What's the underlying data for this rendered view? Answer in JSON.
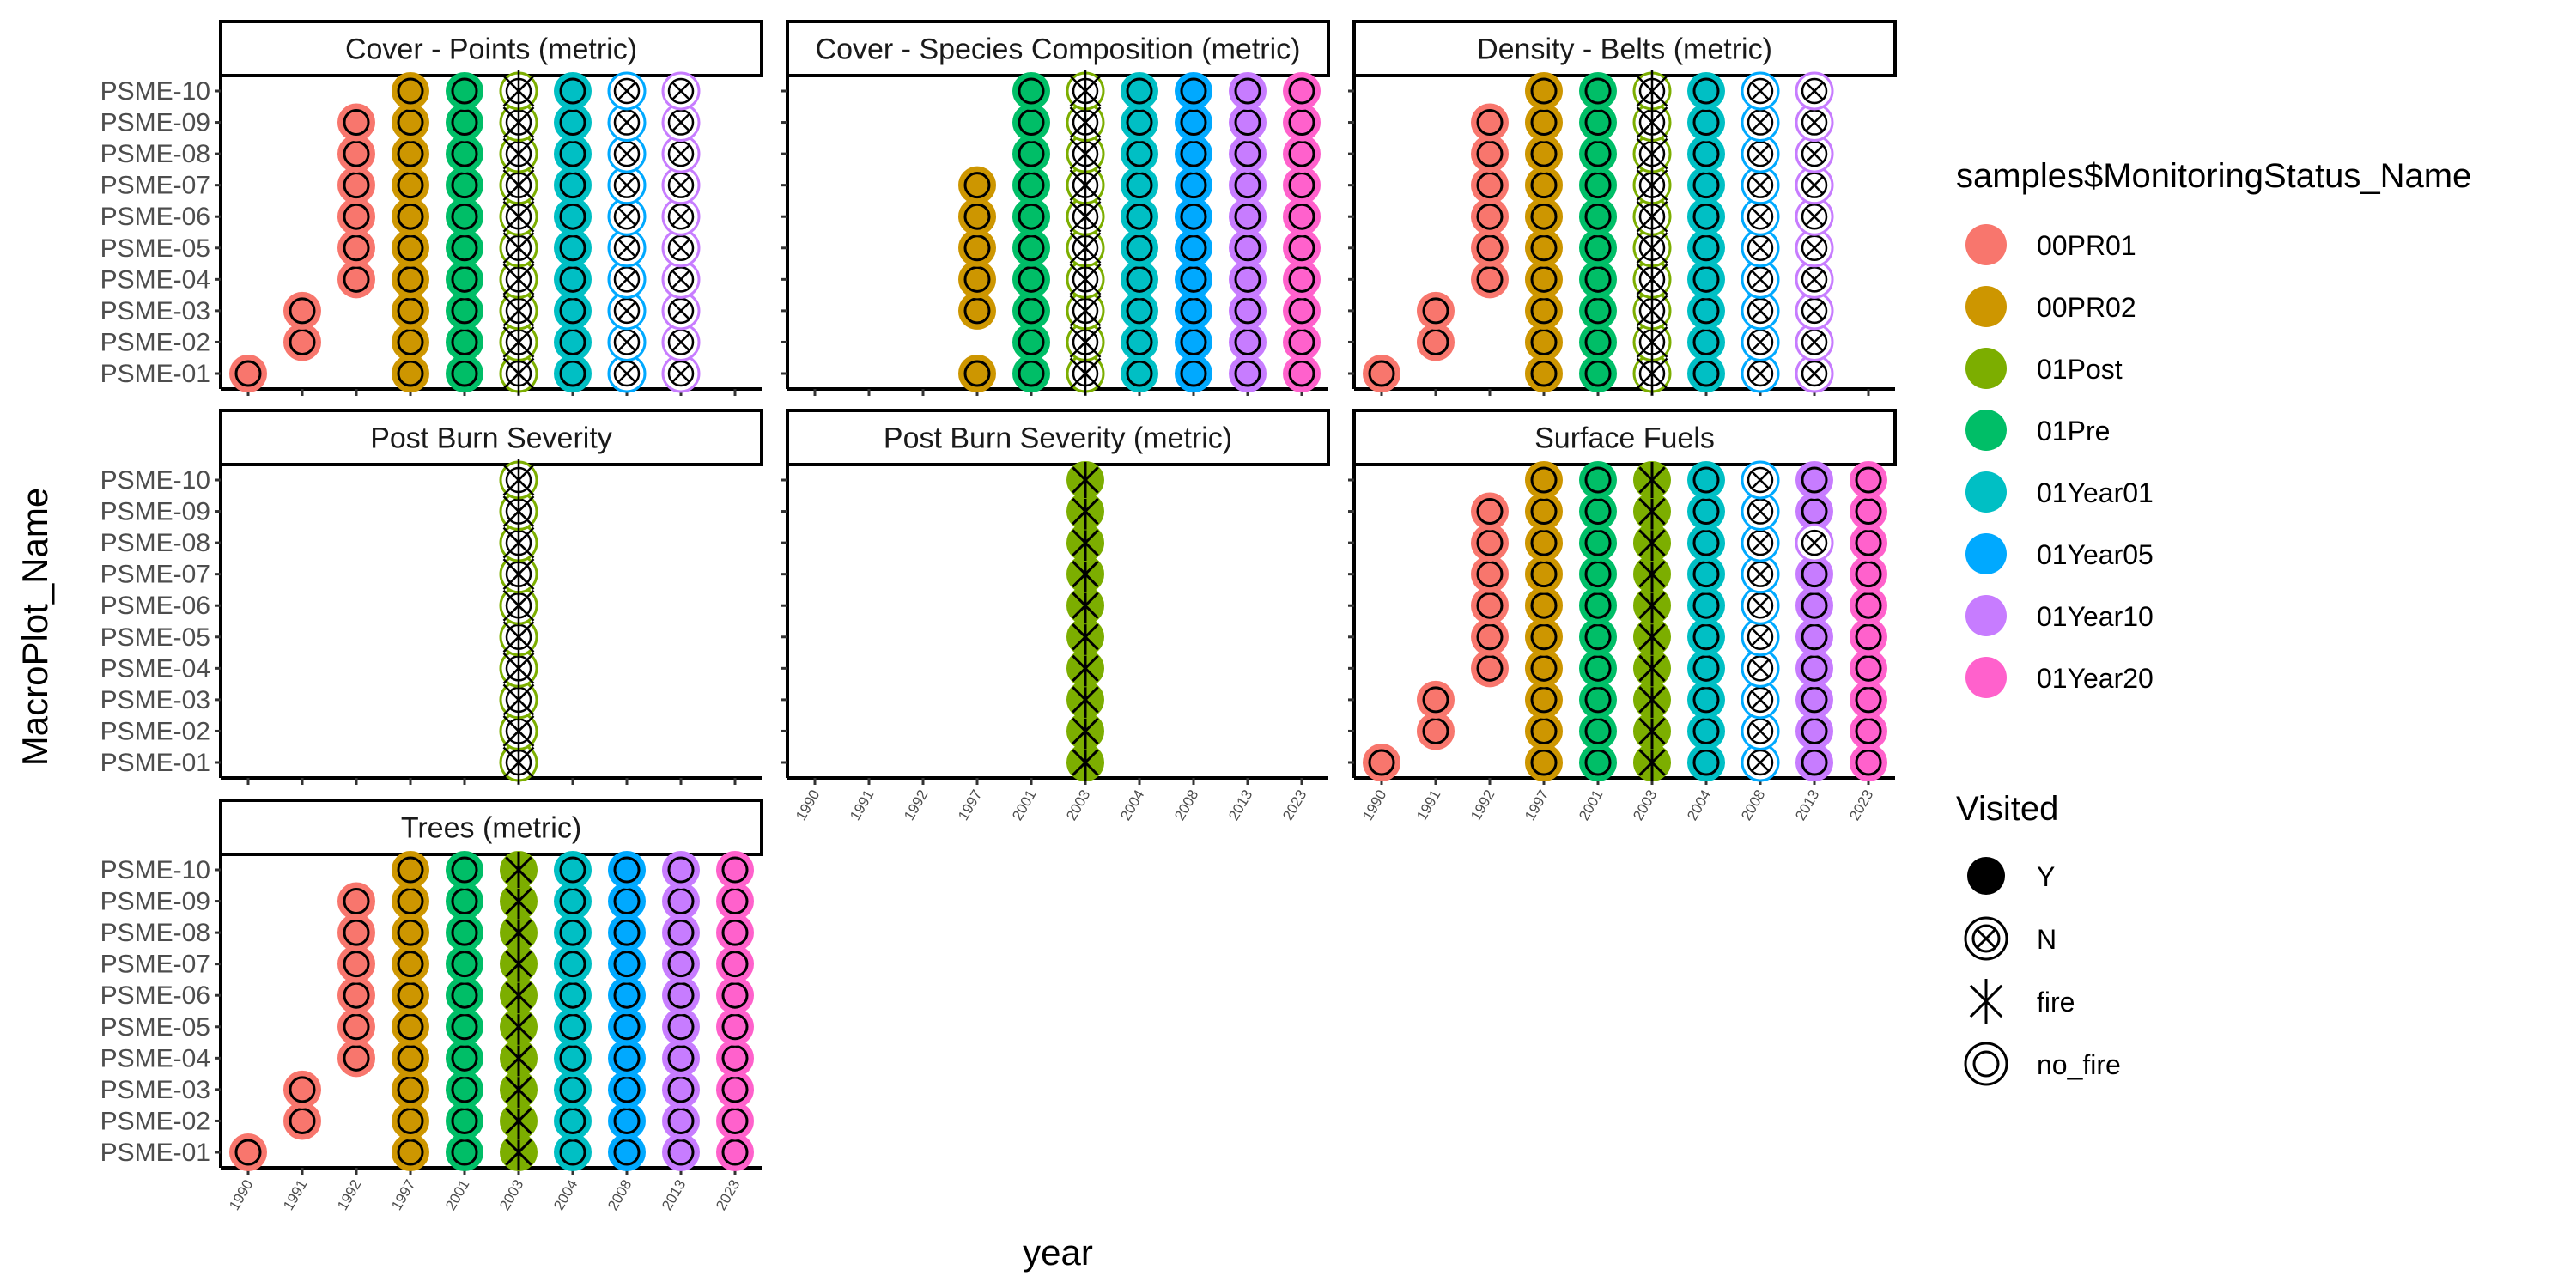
{
  "chart_data": {
    "type": "scatter",
    "xlabel": "year",
    "ylabel": "MacroPlot_Name",
    "x_categories": [
      "1990",
      "1991",
      "1992",
      "1997",
      "2001",
      "2003",
      "2004",
      "2008",
      "2013",
      "2023"
    ],
    "y_categories": [
      "PSME-01",
      "PSME-02",
      "PSME-03",
      "PSME-04",
      "PSME-05",
      "PSME-06",
      "PSME-07",
      "PSME-08",
      "PSME-09",
      "PSME-10"
    ],
    "status_colors": {
      "00PR01": "#F8766D",
      "00PR02": "#CD9600",
      "01Post": "#7CAE00",
      "01Pre": "#00BE67",
      "01Year01": "#00BFC4",
      "01Year05": "#00A9FF",
      "01Year10": "#C77CFF",
      "01Year20": "#FF61CC"
    },
    "color_legend": {
      "title": "samples$MonitoringStatus_Name",
      "entries": [
        "00PR01",
        "00PR02",
        "01Post",
        "01Pre",
        "01Year01",
        "01Year05",
        "01Year10",
        "01Year20"
      ]
    },
    "shape_legend": {
      "title": "Visited",
      "entries": [
        {
          "label": "Y",
          "shape": "filled-circle"
        },
        {
          "label": "N",
          "shape": "circle-x"
        },
        {
          "label": "fire",
          "shape": "asterisk"
        },
        {
          "label": "no_fire",
          "shape": "double-circle"
        }
      ]
    },
    "facets": [
      {
        "title": "Cover - Points (metric)",
        "columns": [
          {
            "year": "1990",
            "status": "00PR01",
            "visited": "no_fire",
            "plots": [
              1
            ]
          },
          {
            "year": "1991",
            "status": "00PR01",
            "visited": "no_fire",
            "plots": [
              2,
              3
            ]
          },
          {
            "year": "1992",
            "status": "00PR01",
            "visited": "no_fire",
            "plots": [
              4,
              5,
              6,
              7,
              8,
              9
            ]
          },
          {
            "year": "1997",
            "status": "00PR02",
            "visited": "no_fire",
            "plots": [
              1,
              2,
              3,
              4,
              5,
              6,
              7,
              8,
              9,
              10
            ]
          },
          {
            "year": "2001",
            "status": "01Pre",
            "visited": "no_fire",
            "plots": [
              1,
              2,
              3,
              4,
              5,
              6,
              7,
              8,
              9,
              10
            ]
          },
          {
            "year": "2003",
            "status": "01Post",
            "visited": "N",
            "plots": [
              1,
              2,
              3,
              4,
              5,
              6,
              7,
              8,
              9,
              10
            ],
            "marker": "asterisk"
          },
          {
            "year": "2004",
            "status": "01Year01",
            "visited": "no_fire",
            "plots": [
              1,
              2,
              3,
              4,
              5,
              6,
              7,
              8,
              9,
              10
            ]
          },
          {
            "year": "2008",
            "status": "01Year05",
            "visited": "N",
            "plots": [
              1,
              2,
              3,
              4,
              5,
              6,
              7,
              8,
              9,
              10
            ]
          },
          {
            "year": "2013",
            "status": "01Year10",
            "visited": "N",
            "plots": [
              1,
              2,
              3,
              4,
              5,
              6,
              7,
              8,
              9,
              10
            ]
          }
        ]
      },
      {
        "title": "Cover - Species Composition (metric)",
        "columns": [
          {
            "year": "1997",
            "status": "00PR02",
            "visited": "no_fire",
            "plots": [
              1,
              3,
              4,
              5,
              6,
              7
            ]
          },
          {
            "year": "2001",
            "status": "01Pre",
            "visited": "no_fire",
            "plots": [
              1,
              2,
              3,
              4,
              5,
              6,
              7,
              8,
              9,
              10
            ]
          },
          {
            "year": "2003",
            "status": "01Post",
            "visited": "N",
            "plots": [
              1,
              2,
              3,
              4,
              5,
              6,
              7,
              8,
              9,
              10
            ],
            "marker": "asterisk"
          },
          {
            "year": "2004",
            "status": "01Year01",
            "visited": "no_fire",
            "plots": [
              1,
              2,
              3,
              4,
              5,
              6,
              7,
              8,
              9,
              10
            ]
          },
          {
            "year": "2008",
            "status": "01Year05",
            "visited": "no_fire",
            "plots": [
              1,
              2,
              3,
              4,
              5,
              6,
              7,
              8,
              9,
              10
            ]
          },
          {
            "year": "2013",
            "status": "01Year10",
            "visited": "no_fire",
            "plots": [
              1,
              2,
              3,
              4,
              5,
              6,
              7,
              8,
              9,
              10
            ]
          },
          {
            "year": "2023",
            "status": "01Year20",
            "visited": "no_fire",
            "plots": [
              1,
              2,
              3,
              4,
              5,
              6,
              7,
              8,
              9,
              10
            ]
          }
        ]
      },
      {
        "title": "Density - Belts (metric)",
        "columns": [
          {
            "year": "1990",
            "status": "00PR01",
            "visited": "no_fire",
            "plots": [
              1
            ]
          },
          {
            "year": "1991",
            "status": "00PR01",
            "visited": "no_fire",
            "plots": [
              2,
              3
            ]
          },
          {
            "year": "1992",
            "status": "00PR01",
            "visited": "no_fire",
            "plots": [
              4,
              5,
              6,
              7,
              8,
              9
            ]
          },
          {
            "year": "1997",
            "status": "00PR02",
            "visited": "no_fire",
            "plots": [
              1,
              2,
              3,
              4,
              5,
              6,
              7,
              8,
              9,
              10
            ]
          },
          {
            "year": "2001",
            "status": "01Pre",
            "visited": "no_fire",
            "plots": [
              1,
              2,
              3,
              4,
              5,
              6,
              7,
              8,
              9,
              10
            ]
          },
          {
            "year": "2003",
            "status": "01Post",
            "visited": "N",
            "plots": [
              1,
              2,
              3,
              4,
              5,
              6,
              7,
              8,
              9,
              10
            ],
            "marker": "asterisk"
          },
          {
            "year": "2004",
            "status": "01Year01",
            "visited": "no_fire",
            "plots": [
              1,
              2,
              3,
              4,
              5,
              6,
              7,
              8,
              9,
              10
            ]
          },
          {
            "year": "2008",
            "status": "01Year05",
            "visited": "N",
            "plots": [
              1,
              2,
              3,
              4,
              5,
              6,
              7,
              8,
              9,
              10
            ]
          },
          {
            "year": "2013",
            "status": "01Year10",
            "visited": "N",
            "plots": [
              1,
              2,
              3,
              4,
              5,
              6,
              7,
              8,
              9,
              10
            ]
          }
        ]
      },
      {
        "title": "Post Burn Severity",
        "columns": [
          {
            "year": "2003",
            "status": "01Post",
            "visited": "N",
            "plots": [
              1,
              2,
              3,
              4,
              5,
              6,
              7,
              8,
              9,
              10
            ],
            "marker": "asterisk"
          }
        ]
      },
      {
        "title": "Post Burn Severity (metric)",
        "columns": [
          {
            "year": "2003",
            "status": "01Post",
            "visited": "fire",
            "plots": [
              1,
              2,
              3,
              4,
              5,
              6,
              7,
              8,
              9,
              10
            ]
          }
        ]
      },
      {
        "title": "Surface Fuels",
        "columns": [
          {
            "year": "1990",
            "status": "00PR01",
            "visited": "no_fire",
            "plots": [
              1
            ]
          },
          {
            "year": "1991",
            "status": "00PR01",
            "visited": "no_fire",
            "plots": [
              2,
              3
            ]
          },
          {
            "year": "1992",
            "status": "00PR01",
            "visited": "no_fire",
            "plots": [
              4,
              5,
              6,
              7,
              8,
              9
            ]
          },
          {
            "year": "1997",
            "status": "00PR02",
            "visited": "no_fire",
            "plots": [
              1,
              2,
              3,
              4,
              5,
              6,
              7,
              8,
              9,
              10
            ]
          },
          {
            "year": "2001",
            "status": "01Pre",
            "visited": "no_fire",
            "plots": [
              1,
              2,
              3,
              4,
              5,
              6,
              7,
              8,
              9,
              10
            ]
          },
          {
            "year": "2003",
            "status": "01Post",
            "visited": "fire",
            "plots": [
              1,
              2,
              3,
              4,
              5,
              6,
              7,
              8,
              9,
              10
            ]
          },
          {
            "year": "2004",
            "status": "01Year01",
            "visited": "no_fire",
            "plots": [
              1,
              2,
              3,
              4,
              5,
              6,
              7,
              8,
              9,
              10
            ]
          },
          {
            "year": "2008",
            "status": "01Year05",
            "visited": "N",
            "plots": [
              1,
              2,
              3,
              4,
              5,
              6,
              7,
              8,
              9,
              10
            ]
          },
          {
            "year": "2013",
            "status": "01Year10",
            "visited": "no_fire",
            "plots": [
              1,
              2,
              3,
              4,
              5,
              6,
              7,
              9,
              10
            ]
          },
          {
            "year": "2013",
            "status": "01Year10",
            "visited": "N",
            "plots": [
              8
            ]
          },
          {
            "year": "2023",
            "status": "01Year20",
            "visited": "no_fire",
            "plots": [
              1,
              2,
              3,
              4,
              5,
              6,
              7,
              8,
              9,
              10
            ]
          }
        ]
      },
      {
        "title": "Trees (metric)",
        "columns": [
          {
            "year": "1990",
            "status": "00PR01",
            "visited": "no_fire",
            "plots": [
              1
            ]
          },
          {
            "year": "1991",
            "status": "00PR01",
            "visited": "no_fire",
            "plots": [
              2,
              3
            ]
          },
          {
            "year": "1992",
            "status": "00PR01",
            "visited": "no_fire",
            "plots": [
              4,
              5,
              6,
              7,
              8,
              9
            ]
          },
          {
            "year": "1997",
            "status": "00PR02",
            "visited": "no_fire",
            "plots": [
              1,
              2,
              3,
              4,
              5,
              6,
              7,
              8,
              9,
              10
            ]
          },
          {
            "year": "2001",
            "status": "01Pre",
            "visited": "no_fire",
            "plots": [
              1,
              2,
              3,
              4,
              5,
              6,
              7,
              8,
              9,
              10
            ]
          },
          {
            "year": "2003",
            "status": "01Post",
            "visited": "fire",
            "plots": [
              1,
              2,
              3,
              4,
              5,
              6,
              7,
              8,
              9,
              10
            ]
          },
          {
            "year": "2004",
            "status": "01Year01",
            "visited": "no_fire",
            "plots": [
              1,
              2,
              3,
              4,
              5,
              6,
              7,
              8,
              9,
              10
            ]
          },
          {
            "year": "2008",
            "status": "01Year05",
            "visited": "no_fire",
            "plots": [
              1,
              2,
              3,
              4,
              5,
              6,
              7,
              8,
              9,
              10
            ]
          },
          {
            "year": "2013",
            "status": "01Year10",
            "visited": "no_fire",
            "plots": [
              1,
              2,
              3,
              4,
              5,
              6,
              7,
              8,
              9,
              10
            ]
          },
          {
            "year": "2023",
            "status": "01Year20",
            "visited": "no_fire",
            "plots": [
              1,
              2,
              3,
              4,
              5,
              6,
              7,
              8,
              9,
              10
            ]
          }
        ]
      }
    ]
  }
}
